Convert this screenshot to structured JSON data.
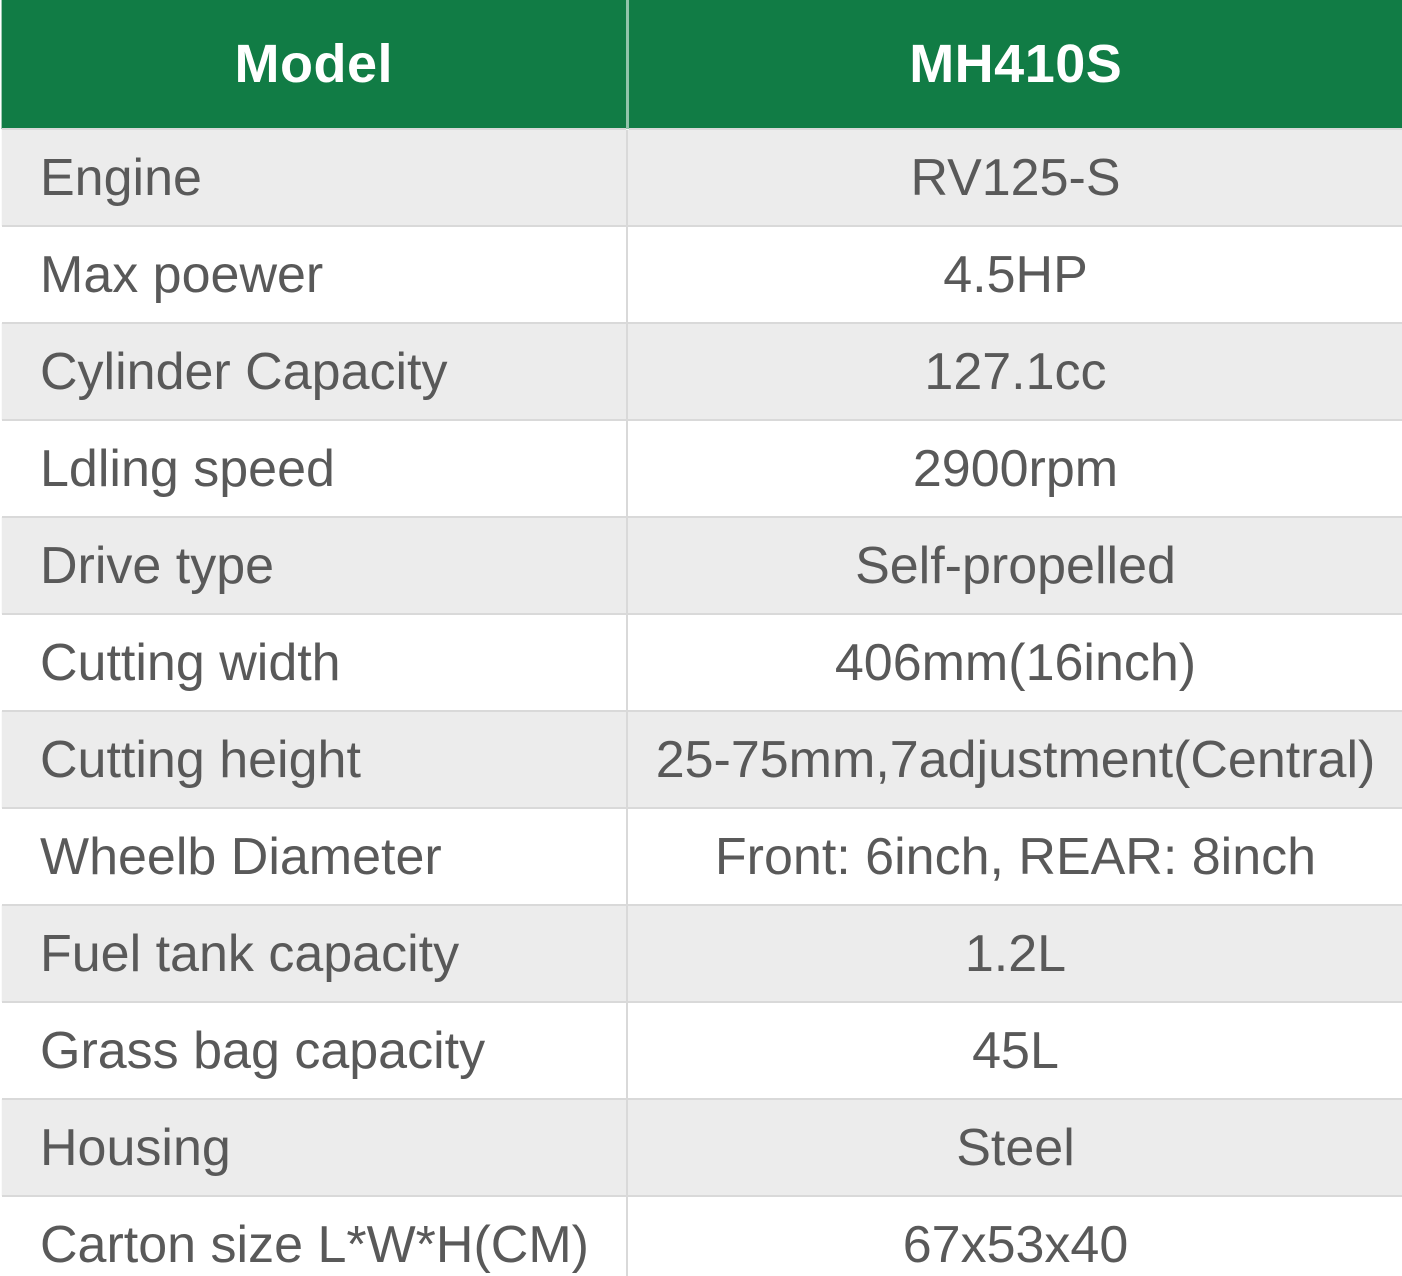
{
  "table": {
    "header": {
      "model_label": "Model",
      "model_value": "MH410S"
    },
    "rows": [
      {
        "label": "Engine",
        "value": "RV125-S"
      },
      {
        "label": "Max poewer",
        "value": "4.5HP"
      },
      {
        "label": "Cylinder Capacity",
        "value": "127.1cc"
      },
      {
        "label": "Ldling speed",
        "value": "2900rpm"
      },
      {
        "label": "Drive type",
        "value": "Self-propelled"
      },
      {
        "label": "Cutting width",
        "value": "406mm(16inch)"
      },
      {
        "label": "Cutting height",
        "value": "25-75mm,7adjustment(Central)"
      },
      {
        "label": "Wheelb Diameter",
        "value": "Front: 6inch, REAR: 8inch"
      },
      {
        "label": "Fuel tank capacity",
        "value": "1.2L"
      },
      {
        "label": "Grass bag capacity",
        "value": "45L"
      },
      {
        "label": "Housing",
        "value": "Steel"
      },
      {
        "label": "Carton size L*W*H(CM)",
        "value": "67x53x40"
      }
    ],
    "colors": {
      "header_bg": "#117c45",
      "header_text": "#ffffff",
      "row_bg": "#ffffff",
      "row_alt_bg": "#ececec",
      "grid_line": "#d9d9d9",
      "body_text": "#595959"
    }
  }
}
